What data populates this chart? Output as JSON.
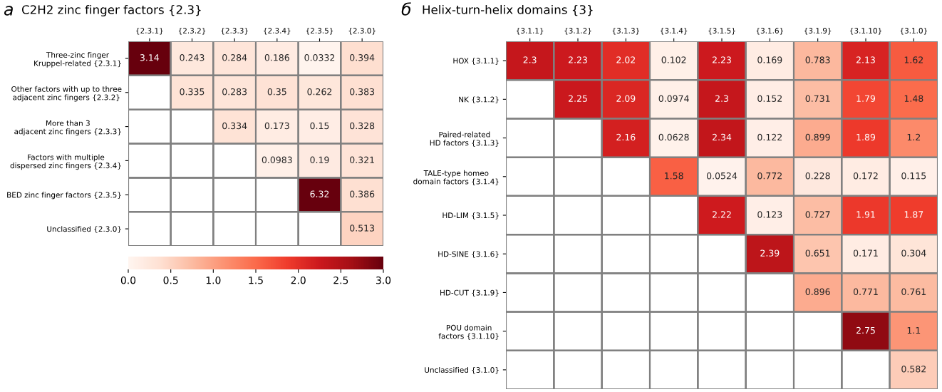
{
  "chart_data": [
    {
      "type": "heatmap",
      "title": "C2H2 zinc finger factors {2.3}",
      "annotations": [
        "а"
      ],
      "categories": [
        "{2.3.1}",
        "{2.3.2}",
        "{2.3.3}",
        "{2.3.4}",
        "{2.3.5}",
        "{2.3.0}"
      ],
      "y_categories": [
        "Three-zinc finger\nKruppel-related {2.3.1}",
        "Other factors with up to three\nadjacent zinc fingers {2.3.2}",
        "More than 3\nadjacent zinc fingers {2.3.3}",
        "Factors with multiple\ndispersed zinc fingers {2.3.4}",
        "BED zinc finger factors {2.3.5}",
        "Unclassified {2.3.0}"
      ],
      "cells": [
        [
          3.14,
          0.243,
          0.284,
          0.186,
          0.0332,
          0.394
        ],
        [
          null,
          0.335,
          0.283,
          0.35,
          0.262,
          0.383
        ],
        [
          null,
          null,
          0.334,
          0.173,
          0.15,
          0.328
        ],
        [
          null,
          null,
          null,
          0.0983,
          0.19,
          0.321
        ],
        [
          null,
          null,
          null,
          null,
          6.32,
          0.386
        ],
        [
          null,
          null,
          null,
          null,
          null,
          0.513
        ]
      ],
      "data_labels": true,
      "clim": [
        0,
        3
      ],
      "cticks": [
        {
          "value": 0,
          "label": "0.0"
        },
        {
          "value": 0.5,
          "label": "0.5"
        },
        {
          "value": 1,
          "label": "1.0"
        },
        {
          "value": 1.5,
          "label": "1.5"
        },
        {
          "value": 2,
          "label": "2.0"
        },
        {
          "value": 2.5,
          "label": "2.5"
        },
        {
          "value": 3,
          "label": "3.0"
        }
      ]
    },
    {
      "type": "heatmap",
      "title": "Helix-turn-helix domains {3}",
      "annotations": [
        "б"
      ],
      "categories": [
        "{3.1.1}",
        "{3.1.2}",
        "{3.1.3}",
        "{3.1.4}",
        "{3.1.5}",
        "{3.1.6}",
        "{3.1.9}",
        "{3.1.10}",
        "{3.1.0}"
      ],
      "y_categories": [
        "HOX {3.1.1}",
        "NK {3.1.2}",
        "Paired-related\nHD factors {3.1.3}",
        "TALE-type homeo\ndomain factors {3.1.4}",
        "HD-LIM {3.1.5}",
        "HD-SINE {3.1.6}",
        "HD-CUT {3.1.9}",
        "POU domain\nfactors {3.1.10}",
        "Unclassified {3.1.0}"
      ],
      "cells": [
        [
          2.3,
          2.23,
          2.02,
          0.102,
          2.23,
          0.169,
          0.783,
          2.13,
          1.62
        ],
        [
          null,
          2.25,
          2.09,
          0.0974,
          2.3,
          0.152,
          0.731,
          1.79,
          1.48
        ],
        [
          null,
          null,
          2.16,
          0.0628,
          2.34,
          0.122,
          0.899,
          1.89,
          1.2
        ],
        [
          null,
          null,
          null,
          1.58,
          0.0524,
          0.772,
          0.228,
          0.172,
          0.115
        ],
        [
          null,
          null,
          null,
          null,
          2.22,
          0.123,
          0.727,
          1.91,
          1.87
        ],
        [
          null,
          null,
          null,
          null,
          null,
          2.39,
          0.651,
          0.171,
          0.304
        ],
        [
          null,
          null,
          null,
          null,
          null,
          null,
          0.896,
          0.771,
          0.761
        ],
        [
          null,
          null,
          null,
          null,
          null,
          null,
          null,
          2.75,
          1.1
        ],
        [
          null,
          null,
          null,
          null,
          null,
          null,
          null,
          null,
          0.582
        ]
      ],
      "data_labels": true
    }
  ]
}
